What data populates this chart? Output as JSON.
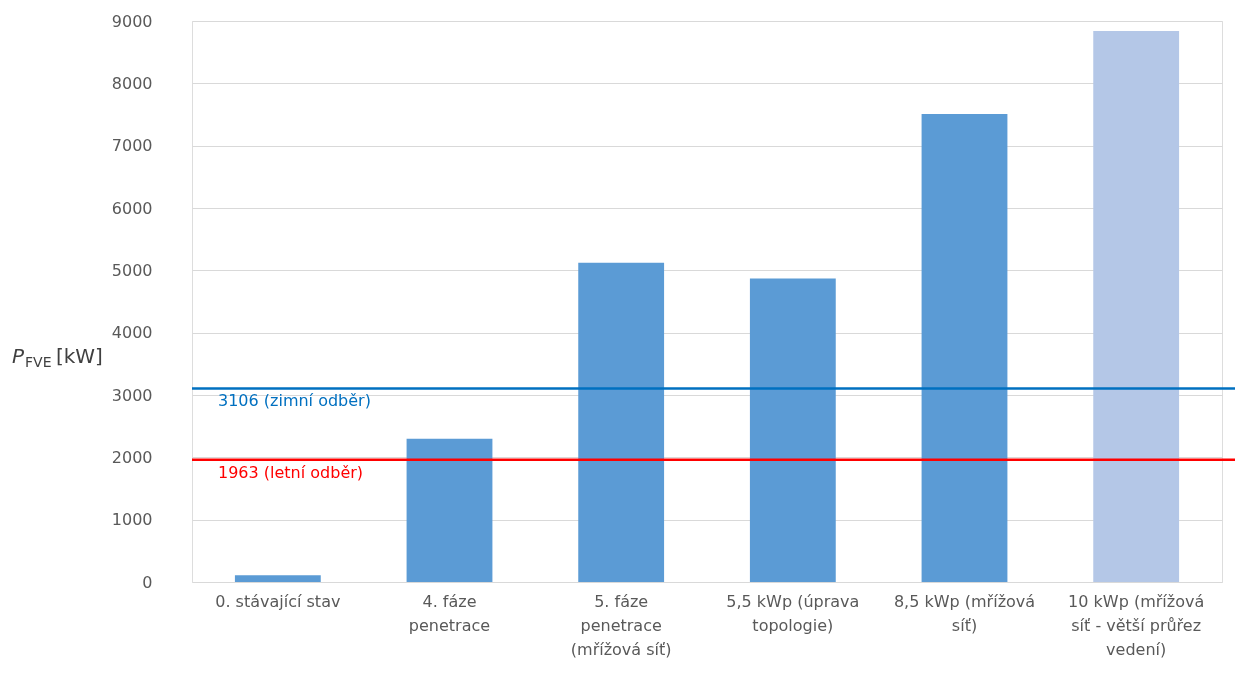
{
  "chart_data": {
    "type": "bar",
    "ylabel": "P$_{FVE}$ [kW]",
    "categories": [
      "0. stávající stav",
      "4. fáze penetrace",
      "5. fáze penetrace (mřížová síť)",
      "5,5 kWp (úprava topologie)",
      "8,5 kWp (mřížová síť)",
      "10 kWp (mřížová síť - větší průřez vedení)"
    ],
    "values": [
      110,
      2300,
      5120,
      4870,
      7510,
      8840
    ],
    "colors": [
      "#5b9bd5",
      "#5b9bd5",
      "#5b9bd5",
      "#5b9bd5",
      "#5b9bd5",
      "#b4c7e7"
    ],
    "ylim": [
      0,
      9000
    ],
    "yticks": [
      0,
      1000,
      2000,
      3000,
      4000,
      5000,
      6000,
      7000,
      8000,
      9000
    ],
    "grid": "y",
    "ref_lines": [
      {
        "axis": "y",
        "value": 3106,
        "label": "3106 (zimní odběr)",
        "color": "#0070c0"
      },
      {
        "axis": "y",
        "value": 1963,
        "label": "1963 (letní odběr)",
        "color": "#ff0000"
      }
    ]
  }
}
